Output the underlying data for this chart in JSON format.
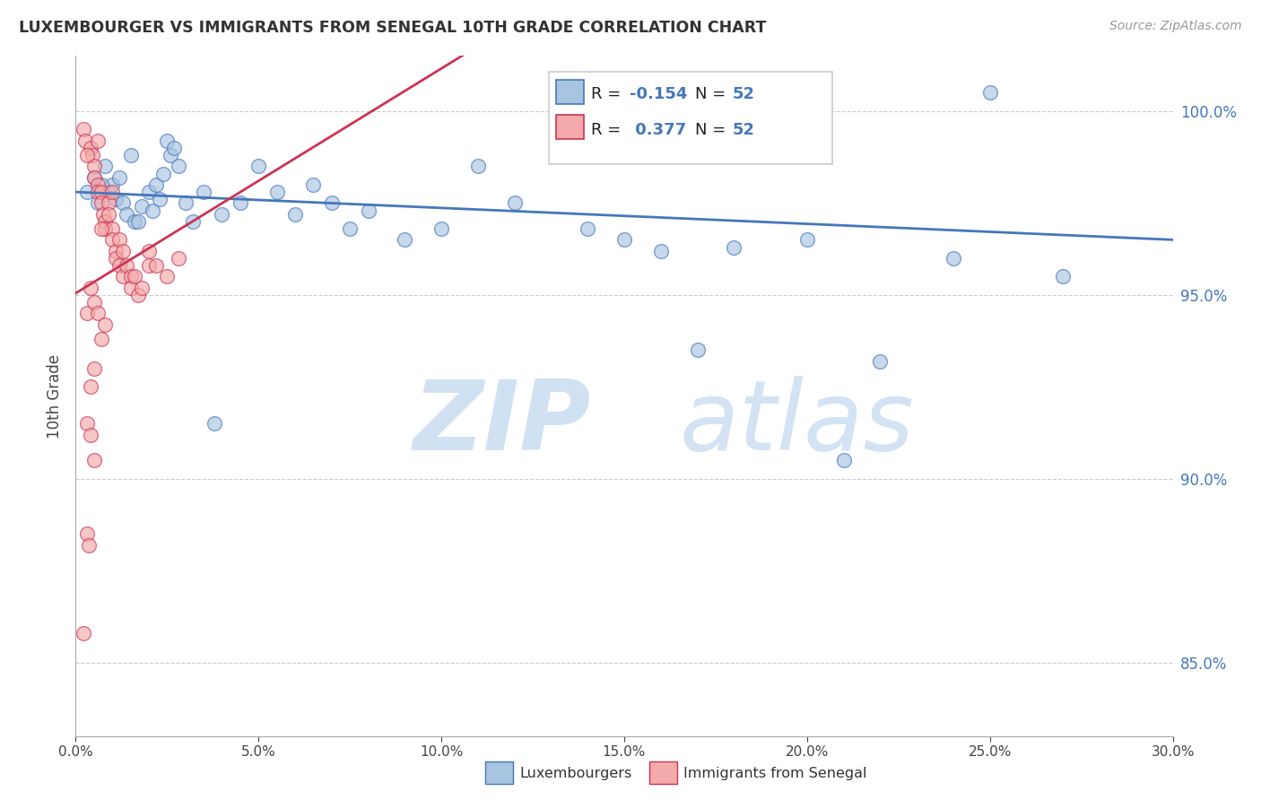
{
  "title": "LUXEMBOURGER VS IMMIGRANTS FROM SENEGAL 10TH GRADE CORRELATION CHART",
  "source": "Source: ZipAtlas.com",
  "ylabel": "10th Grade",
  "xlim": [
    0.0,
    30.0
  ],
  "ylim": [
    83.0,
    101.5
  ],
  "yticks": [
    85.0,
    90.0,
    95.0,
    100.0
  ],
  "xticks": [
    0.0,
    5.0,
    10.0,
    15.0,
    20.0,
    25.0,
    30.0
  ],
  "legend_r_blue": "-0.154",
  "legend_r_pink": "0.377",
  "legend_n": "52",
  "legend_label_blue": "Luxembourgers",
  "legend_label_pink": "Immigrants from Senegal",
  "blue_color": "#A8C4E0",
  "pink_color": "#F4AAAA",
  "trend_blue": "#4477BB",
  "trend_pink": "#CC3355",
  "blue_scatter": [
    [
      0.3,
      97.8
    ],
    [
      0.5,
      98.2
    ],
    [
      0.6,
      97.5
    ],
    [
      0.8,
      98.5
    ],
    [
      0.9,
      97.8
    ],
    [
      1.0,
      98.0
    ],
    [
      1.1,
      97.6
    ],
    [
      1.2,
      98.2
    ],
    [
      1.3,
      97.5
    ],
    [
      1.4,
      97.2
    ],
    [
      1.5,
      98.8
    ],
    [
      1.6,
      97.0
    ],
    [
      1.8,
      97.4
    ],
    [
      2.0,
      97.8
    ],
    [
      2.1,
      97.3
    ],
    [
      2.2,
      98.0
    ],
    [
      2.3,
      97.6
    ],
    [
      2.5,
      99.2
    ],
    [
      2.6,
      98.8
    ],
    [
      2.7,
      99.0
    ],
    [
      2.8,
      98.5
    ],
    [
      3.0,
      97.5
    ],
    [
      3.2,
      97.0
    ],
    [
      3.5,
      97.8
    ],
    [
      4.0,
      97.2
    ],
    [
      4.5,
      97.5
    ],
    [
      5.0,
      98.5
    ],
    [
      5.5,
      97.8
    ],
    [
      6.0,
      97.2
    ],
    [
      6.5,
      98.0
    ],
    [
      7.0,
      97.5
    ],
    [
      7.5,
      96.8
    ],
    [
      8.0,
      97.3
    ],
    [
      9.0,
      96.5
    ],
    [
      10.0,
      96.8
    ],
    [
      11.0,
      98.5
    ],
    [
      12.0,
      97.5
    ],
    [
      14.0,
      96.8
    ],
    [
      15.0,
      96.5
    ],
    [
      16.0,
      96.2
    ],
    [
      17.0,
      93.5
    ],
    [
      18.0,
      96.3
    ],
    [
      20.0,
      96.5
    ],
    [
      21.0,
      90.5
    ],
    [
      22.0,
      93.2
    ],
    [
      24.0,
      96.0
    ],
    [
      25.0,
      100.5
    ],
    [
      27.0,
      95.5
    ],
    [
      0.7,
      98.0
    ],
    [
      1.7,
      97.0
    ],
    [
      2.4,
      98.3
    ],
    [
      3.8,
      91.5
    ]
  ],
  "pink_scatter": [
    [
      0.2,
      99.5
    ],
    [
      0.25,
      99.2
    ],
    [
      0.4,
      99.0
    ],
    [
      0.45,
      98.8
    ],
    [
      0.5,
      98.5
    ],
    [
      0.5,
      98.2
    ],
    [
      0.6,
      98.0
    ],
    [
      0.6,
      97.8
    ],
    [
      0.7,
      97.8
    ],
    [
      0.7,
      97.5
    ],
    [
      0.75,
      97.2
    ],
    [
      0.8,
      97.0
    ],
    [
      0.8,
      96.8
    ],
    [
      0.9,
      97.5
    ],
    [
      0.9,
      97.2
    ],
    [
      1.0,
      96.8
    ],
    [
      1.0,
      96.5
    ],
    [
      1.1,
      96.2
    ],
    [
      1.1,
      96.0
    ],
    [
      1.2,
      96.5
    ],
    [
      1.2,
      95.8
    ],
    [
      1.3,
      96.2
    ],
    [
      1.3,
      95.5
    ],
    [
      1.4,
      95.8
    ],
    [
      1.5,
      95.5
    ],
    [
      1.5,
      95.2
    ],
    [
      1.6,
      95.5
    ],
    [
      1.7,
      95.0
    ],
    [
      1.8,
      95.2
    ],
    [
      2.0,
      96.2
    ],
    [
      2.0,
      95.8
    ],
    [
      2.2,
      95.8
    ],
    [
      2.5,
      95.5
    ],
    [
      2.8,
      96.0
    ],
    [
      0.3,
      94.5
    ],
    [
      0.4,
      95.2
    ],
    [
      0.5,
      94.8
    ],
    [
      0.6,
      94.5
    ],
    [
      0.7,
      93.8
    ],
    [
      0.8,
      94.2
    ],
    [
      0.4,
      92.5
    ],
    [
      0.5,
      93.0
    ],
    [
      0.3,
      91.5
    ],
    [
      0.4,
      91.2
    ],
    [
      0.5,
      90.5
    ],
    [
      0.3,
      88.5
    ],
    [
      0.35,
      88.2
    ],
    [
      0.2,
      85.8
    ],
    [
      1.0,
      97.8
    ],
    [
      0.3,
      98.8
    ],
    [
      0.6,
      99.2
    ],
    [
      0.7,
      96.8
    ]
  ]
}
